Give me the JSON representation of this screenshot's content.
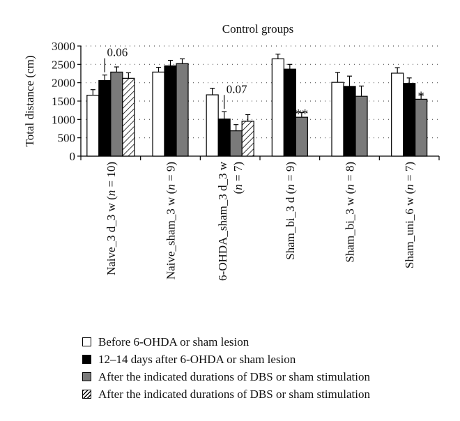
{
  "chart_data": {
    "type": "bar",
    "title": "Control groups",
    "ylabel": "Total distance (cm)",
    "ylim": [
      0,
      3000
    ],
    "yticks": [
      "0",
      "500",
      "1000",
      "1500",
      "2000",
      "2500",
      "3000"
    ],
    "grid": "dotted-horizontal",
    "legend_position": "bottom",
    "categories": [
      {
        "name": "Naive_3 d_3 w (",
        "n": "n",
        "tail": " = 10)"
      },
      {
        "name": "Naive_sham_3 w (",
        "n": "n",
        "tail": " = 9)"
      },
      {
        "name": "6-OHDA_sham_3 d_3 w",
        "line2_pre": "(",
        "n": "n",
        "tail": " = 7)"
      },
      {
        "name": "Sham_bi_3 d (",
        "n": "n",
        "tail": " = 9)"
      },
      {
        "name": "Sham_bi_3 w (",
        "n": "n",
        "tail": " = 8)"
      },
      {
        "name": "Sham_uni_6 w (",
        "n": "n",
        "tail": " = 7)"
      }
    ],
    "series": [
      {
        "name": "Before 6-OHDA or sham lesion",
        "color": "#ffffff",
        "pattern": "none",
        "values": [
          1660,
          2290,
          1670,
          2650,
          2010,
          2260
        ],
        "errors": [
          150,
          130,
          180,
          130,
          270,
          150
        ]
      },
      {
        "name": "12–14 days after 6-OHDA or sham lesion",
        "color": "#000000",
        "pattern": "none",
        "values": [
          2060,
          2460,
          1010,
          2370,
          1900,
          1980
        ],
        "errors": [
          150,
          150,
          200,
          130,
          280,
          150
        ]
      },
      {
        "name": "After the indicated durations of DBS or sham stimulation",
        "color": "#7a7a7a",
        "pattern": "none",
        "values": [
          2290,
          2520,
          690,
          1060,
          1630,
          1550
        ],
        "errors": [
          140,
          130,
          170,
          130,
          280,
          120
        ]
      },
      {
        "name": "After the indicated durations of DBS or sham stimulation",
        "color": "#ffffff",
        "pattern": "hatch",
        "values": [
          2120,
          null,
          950,
          null,
          null,
          null
        ],
        "errors": [
          150,
          null,
          180,
          null,
          null,
          null
        ]
      }
    ],
    "annotations": [
      {
        "text": "0.06",
        "group": 0,
        "series": 1
      },
      {
        "text": "0.07",
        "group": 2,
        "series": 1
      },
      {
        "text": "**",
        "group": 3,
        "series": 2
      },
      {
        "text": "*",
        "group": 5,
        "series": 2
      }
    ]
  }
}
